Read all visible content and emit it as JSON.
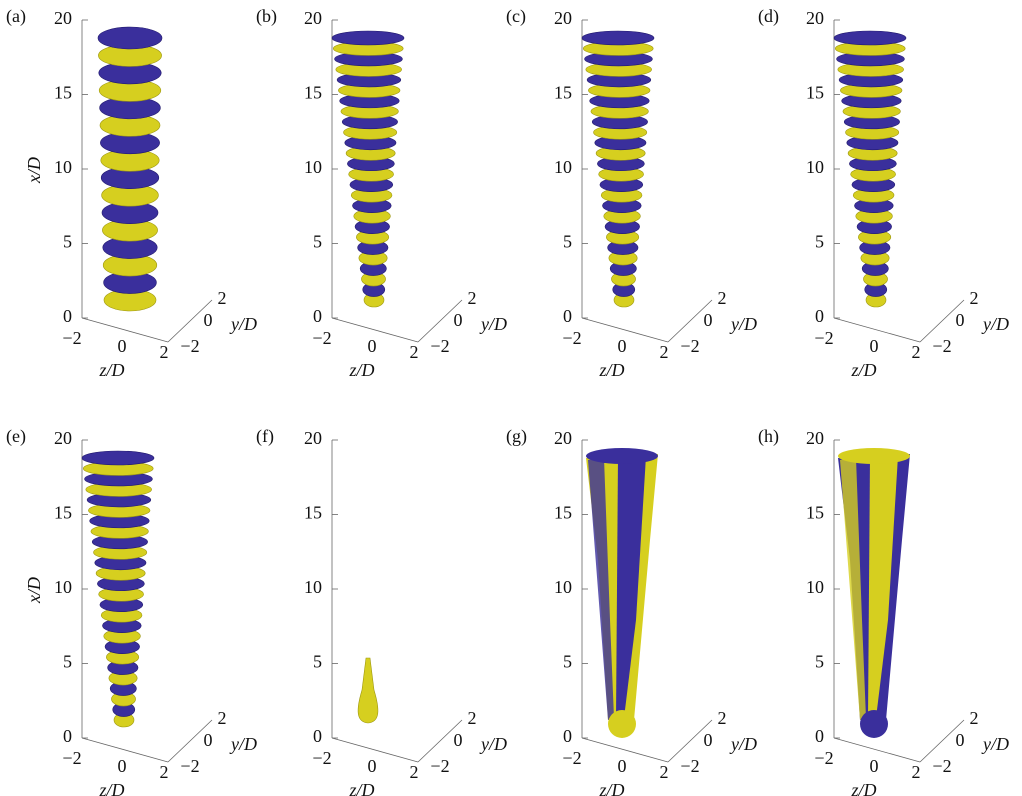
{
  "panels": [
    {
      "label": "(a)",
      "x_ticks": [
        "0",
        "5",
        "10",
        "15",
        "20"
      ],
      "z_ticks": [
        "−2",
        "0",
        "2"
      ],
      "y_ticks": [
        "−2",
        "0",
        "2"
      ],
      "x_label": "x/D",
      "z_label": "z/D",
      "y_label": "y/D"
    },
    {
      "label": "(b)",
      "x_ticks": [
        "0",
        "5",
        "10",
        "15",
        "20"
      ],
      "z_ticks": [
        "−2",
        "0",
        "2"
      ],
      "y_ticks": [
        "−2",
        "0",
        "2"
      ],
      "z_label": "z/D",
      "y_label": "y/D"
    },
    {
      "label": "(c)",
      "x_ticks": [
        "0",
        "5",
        "10",
        "15",
        "20"
      ],
      "z_ticks": [
        "−2",
        "0",
        "2"
      ],
      "y_ticks": [
        "−2",
        "0",
        "2"
      ],
      "z_label": "z/D",
      "y_label": "y/D"
    },
    {
      "label": "(d)",
      "x_ticks": [
        "0",
        "5",
        "10",
        "15",
        "20"
      ],
      "z_ticks": [
        "−2",
        "0",
        "2"
      ],
      "y_ticks": [
        "−2",
        "0",
        "2"
      ],
      "z_label": "z/D",
      "y_label": "y/D"
    },
    {
      "label": "(e)",
      "x_ticks": [
        "0",
        "5",
        "10",
        "15",
        "20"
      ],
      "z_ticks": [
        "−2",
        "0",
        "2"
      ],
      "y_ticks": [
        "−2",
        "0",
        "2"
      ],
      "x_label": "x/D",
      "z_label": "z/D",
      "y_label": "y/D"
    },
    {
      "label": "(f)",
      "x_ticks": [
        "0",
        "5",
        "10",
        "15",
        "20"
      ],
      "z_ticks": [
        "−2",
        "0",
        "2"
      ],
      "y_ticks": [
        "−2",
        "0",
        "2"
      ],
      "z_label": "z/D",
      "y_label": "y/D"
    },
    {
      "label": "(g)",
      "x_ticks": [
        "0",
        "5",
        "10",
        "15",
        "20"
      ],
      "z_ticks": [
        "−2",
        "0",
        "2"
      ],
      "y_ticks": [
        "−2",
        "0",
        "2"
      ],
      "z_label": "z/D",
      "y_label": "y/D"
    },
    {
      "label": "(h)",
      "x_ticks": [
        "0",
        "5",
        "10",
        "15",
        "20"
      ],
      "z_ticks": [
        "−2",
        "0",
        "2"
      ],
      "y_ticks": [
        "−2",
        "0",
        "2"
      ],
      "z_label": "z/D",
      "y_label": "y/D"
    }
  ]
}
